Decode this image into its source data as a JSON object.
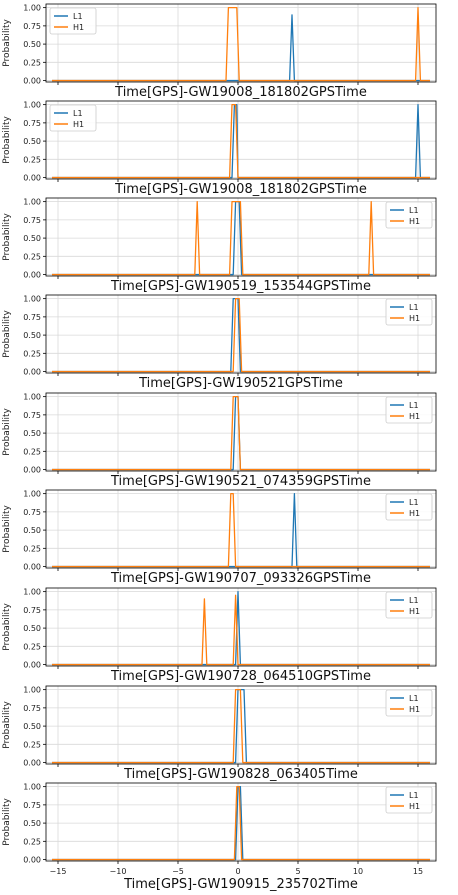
{
  "chart_data": [
    {
      "type": "line",
      "xlabel": "Time[GPS]-GW19008_181802GPSTime",
      "ylabel": "Probability",
      "xlim": [
        -16,
        16.5
      ],
      "ylim": [
        -0.02,
        1.05
      ],
      "yticks": [
        "0.00",
        "0.25",
        "0.50",
        "0.75",
        "1.00"
      ],
      "legend_position": "top-left",
      "series": [
        {
          "name": "L1",
          "color": "#1f77b4",
          "x": [
            -15.5,
            4.3,
            4.5,
            4.7,
            16
          ],
          "y": [
            0,
            0,
            0.9,
            0,
            0
          ]
        },
        {
          "name": "H1",
          "color": "#ff7f0e",
          "x": [
            -15.5,
            -1.0,
            -0.8,
            -0.1,
            0.1,
            14.8,
            15.0,
            15.2,
            16
          ],
          "y": [
            0,
            0,
            1,
            1,
            0,
            0,
            1,
            0,
            0
          ]
        }
      ]
    },
    {
      "type": "line",
      "xlabel": "Time[GPS]-GW19008_181802GPSTime",
      "ylabel": "Probability",
      "xlim": [
        -16,
        16.5
      ],
      "ylim": [
        -0.02,
        1.05
      ],
      "yticks": [
        "0.00",
        "0.25",
        "0.50",
        "0.75",
        "1.00"
      ],
      "legend_position": "top-left",
      "series": [
        {
          "name": "L1",
          "color": "#1f77b4",
          "x": [
            -15.5,
            -0.5,
            -0.3,
            -0.1,
            0.0,
            14.8,
            15.0,
            15.2,
            16
          ],
          "y": [
            0,
            0,
            1,
            1,
            0,
            0,
            1,
            0,
            0
          ]
        },
        {
          "name": "H1",
          "color": "#ff7f0e",
          "x": [
            -15.5,
            -0.7,
            -0.5,
            -0.2,
            0.0,
            16
          ],
          "y": [
            0,
            0,
            1,
            1,
            0,
            0
          ]
        }
      ]
    },
    {
      "type": "line",
      "xlabel": "Time[GPS]-GW190519_153544GPSTime",
      "ylabel": "Probability",
      "xlim": [
        -16,
        16.5
      ],
      "ylim": [
        -0.02,
        1.05
      ],
      "yticks": [
        "0.00",
        "0.25",
        "0.50",
        "0.75",
        "1.00"
      ],
      "legend_position": "top-right",
      "series": [
        {
          "name": "L1",
          "color": "#1f77b4",
          "x": [
            -15.5,
            -0.4,
            -0.2,
            0.1,
            0.3,
            16
          ],
          "y": [
            0,
            0,
            1,
            1,
            0,
            0
          ]
        },
        {
          "name": "H1",
          "color": "#ff7f0e",
          "x": [
            -15.5,
            -3.6,
            -3.4,
            -3.2,
            -0.7,
            -0.5,
            0.2,
            0.4,
            10.9,
            11.1,
            11.3,
            16
          ],
          "y": [
            0,
            0,
            1,
            0,
            0,
            1,
            1,
            0,
            0,
            1,
            0,
            0
          ]
        }
      ]
    },
    {
      "type": "line",
      "xlabel": "Time[GPS]-GW190521GPSTime",
      "ylabel": "Probability",
      "xlim": [
        -16,
        16.5
      ],
      "ylim": [
        -0.02,
        1.05
      ],
      "yticks": [
        "0.00",
        "0.25",
        "0.50",
        "0.75",
        "1.00"
      ],
      "legend_position": "top-right",
      "series": [
        {
          "name": "L1",
          "color": "#1f77b4",
          "x": [
            -15.5,
            -0.6,
            -0.4,
            0.0,
            0.2,
            16
          ],
          "y": [
            0,
            0,
            1,
            1,
            0,
            0
          ]
        },
        {
          "name": "H1",
          "color": "#ff7f0e",
          "x": [
            -15.5,
            -0.4,
            -0.2,
            0.1,
            0.3,
            16
          ],
          "y": [
            0,
            0,
            1,
            1,
            0,
            0
          ]
        }
      ]
    },
    {
      "type": "line",
      "xlabel": "Time[GPS]-GW190521_074359GPSTime",
      "ylabel": "Probability",
      "xlim": [
        -16,
        16.5
      ],
      "ylim": [
        -0.02,
        1.05
      ],
      "yticks": [
        "0.00",
        "0.25",
        "0.50",
        "0.75",
        "1.00"
      ],
      "legend_position": "top-right",
      "series": [
        {
          "name": "L1",
          "color": "#1f77b4",
          "x": [
            -15.5,
            -0.4,
            -0.2,
            0.0,
            0.2,
            16
          ],
          "y": [
            0,
            0,
            1,
            1,
            0,
            0
          ]
        },
        {
          "name": "H1",
          "color": "#ff7f0e",
          "x": [
            -15.5,
            -0.6,
            -0.4,
            0.0,
            0.2,
            16
          ],
          "y": [
            0,
            0,
            1,
            1,
            0,
            0
          ]
        }
      ]
    },
    {
      "type": "line",
      "xlabel": "Time[GPS]-GW190707_093326GPSTime",
      "ylabel": "Probability",
      "xlim": [
        -16,
        16.5
      ],
      "ylim": [
        -0.02,
        1.05
      ],
      "yticks": [
        "0.00",
        "0.25",
        "0.50",
        "0.75",
        "1.00"
      ],
      "legend_position": "top-right",
      "series": [
        {
          "name": "L1",
          "color": "#1f77b4",
          "x": [
            -15.5,
            4.5,
            4.7,
            4.9,
            16
          ],
          "y": [
            0,
            0,
            1,
            0,
            0
          ]
        },
        {
          "name": "H1",
          "color": "#ff7f0e",
          "x": [
            -15.5,
            -0.8,
            -0.6,
            -0.4,
            -0.2,
            16
          ],
          "y": [
            0,
            0,
            1,
            1,
            0,
            0
          ]
        }
      ]
    },
    {
      "type": "line",
      "xlabel": "Time[GPS]-GW190728_064510GPSTime",
      "ylabel": "Probability",
      "xlim": [
        -16,
        16.5
      ],
      "ylim": [
        -0.02,
        1.05
      ],
      "yticks": [
        "0.00",
        "0.25",
        "0.50",
        "0.75",
        "1.00"
      ],
      "legend_position": "top-right",
      "series": [
        {
          "name": "L1",
          "color": "#1f77b4",
          "x": [
            -15.5,
            -0.2,
            0.0,
            0.2,
            16
          ],
          "y": [
            0,
            0,
            1,
            0,
            0
          ]
        },
        {
          "name": "H1",
          "color": "#ff7f0e",
          "x": [
            -15.5,
            -3.0,
            -2.8,
            -2.6,
            -0.4,
            -0.2,
            0.0,
            16
          ],
          "y": [
            0,
            0,
            0.9,
            0,
            0,
            0.95,
            0,
            0
          ]
        }
      ]
    },
    {
      "type": "line",
      "xlabel": "Time[GPS]-GW190828_063405Time",
      "ylabel": "Probability",
      "xlim": [
        -16,
        16.5
      ],
      "ylim": [
        -0.02,
        1.05
      ],
      "yticks": [
        "0.00",
        "0.25",
        "0.50",
        "0.75",
        "1.00"
      ],
      "legend_position": "top-right",
      "series": [
        {
          "name": "L1",
          "color": "#1f77b4",
          "x": [
            -15.5,
            -0.2,
            0.0,
            0.5,
            0.7,
            16
          ],
          "y": [
            0,
            0,
            1,
            1,
            0,
            0
          ]
        },
        {
          "name": "H1",
          "color": "#ff7f0e",
          "x": [
            -15.5,
            -0.4,
            -0.2,
            0.2,
            0.4,
            16
          ],
          "y": [
            0,
            0,
            1,
            1,
            0,
            0
          ]
        }
      ]
    },
    {
      "type": "line",
      "xlabel": "Time[GPS]-GW190915_235702Time",
      "ylabel": "Probability",
      "xlim": [
        -16,
        16.5
      ],
      "ylim": [
        -0.02,
        1.05
      ],
      "yticks": [
        "0.00",
        "0.25",
        "0.50",
        "0.75",
        "1.00"
      ],
      "xticks": [
        "−15",
        "−10",
        "−5",
        "0",
        "5",
        "10",
        "15"
      ],
      "legend_position": "top-right",
      "series": [
        {
          "name": "L1",
          "color": "#1f77b4",
          "x": [
            -15.5,
            -0.2,
            0.0,
            0.2,
            0.4,
            16
          ],
          "y": [
            0,
            0,
            1,
            1,
            0,
            0
          ]
        },
        {
          "name": "H1",
          "color": "#ff7f0e",
          "x": [
            -15.5,
            -0.3,
            -0.1,
            0.1,
            0.3,
            16
          ],
          "y": [
            0,
            0,
            1,
            1,
            0,
            0
          ]
        }
      ]
    }
  ]
}
